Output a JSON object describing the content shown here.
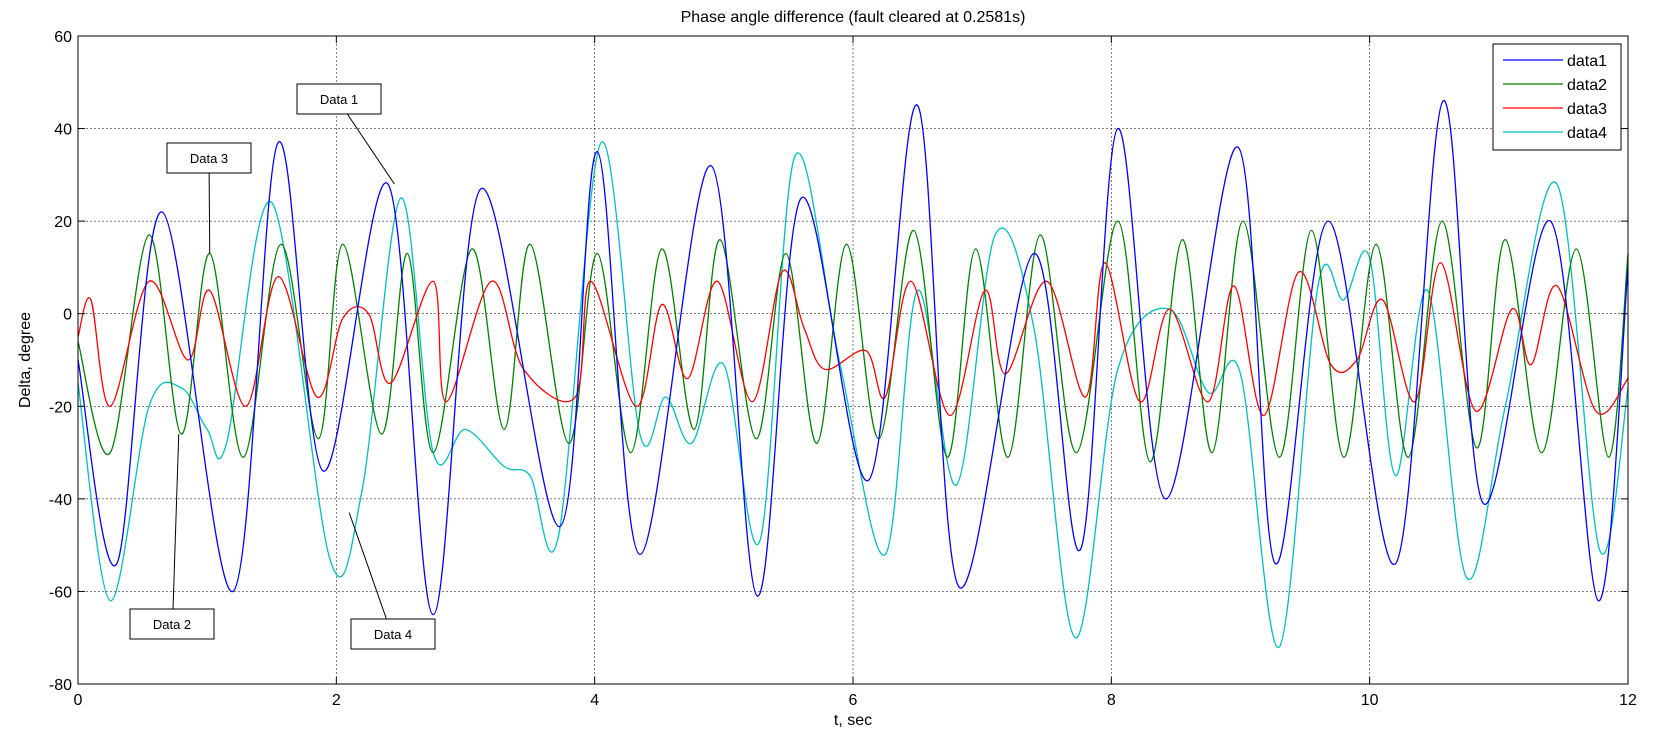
{
  "chart_data": {
    "type": "line",
    "title": "Phase angle difference (fault cleared at 0.2581s)",
    "xlabel": "t, sec",
    "ylabel": "Delta, degree",
    "xlim": [
      0,
      12
    ],
    "ylim": [
      -80,
      60
    ],
    "xticks": [
      0,
      2,
      4,
      6,
      8,
      10,
      12
    ],
    "yticks": [
      -80,
      -60,
      -40,
      -20,
      0,
      20,
      40,
      60
    ],
    "grid": true,
    "legend_position": "top-right",
    "series": [
      {
        "name": "data1",
        "color": "#0000ff",
        "points": [
          [
            0,
            -10
          ],
          [
            0.3,
            -54
          ],
          [
            0.65,
            22
          ],
          [
            1.2,
            -60
          ],
          [
            1.55,
            37
          ],
          [
            1.9,
            -34
          ],
          [
            2.4,
            28
          ],
          [
            2.75,
            -65
          ],
          [
            3.12,
            27
          ],
          [
            3.73,
            -46
          ],
          [
            4.02,
            35
          ],
          [
            4.35,
            -52
          ],
          [
            4.9,
            32
          ],
          [
            5.26,
            -61
          ],
          [
            5.6,
            25
          ],
          [
            6.12,
            -36
          ],
          [
            6.5,
            45
          ],
          [
            6.82,
            -59
          ],
          [
            7.4,
            13
          ],
          [
            7.76,
            -51
          ],
          [
            8.05,
            40
          ],
          [
            8.42,
            -40
          ],
          [
            8.98,
            36
          ],
          [
            9.27,
            -54
          ],
          [
            9.68,
            20
          ],
          [
            10.2,
            -54
          ],
          [
            10.57,
            46
          ],
          [
            10.88,
            -41
          ],
          [
            11.4,
            20
          ],
          [
            11.77,
            -62
          ],
          [
            12,
            10
          ]
        ]
      },
      {
        "name": "data2",
        "color": "#008000",
        "points": [
          [
            0,
            -6
          ],
          [
            0.25,
            -30
          ],
          [
            0.55,
            17
          ],
          [
            0.8,
            -26
          ],
          [
            1.02,
            13
          ],
          [
            1.28,
            -31
          ],
          [
            1.57,
            15
          ],
          [
            1.86,
            -27
          ],
          [
            2.05,
            15
          ],
          [
            2.35,
            -26
          ],
          [
            2.55,
            13
          ],
          [
            2.75,
            -30
          ],
          [
            3.05,
            14
          ],
          [
            3.3,
            -25
          ],
          [
            3.5,
            15
          ],
          [
            3.8,
            -28
          ],
          [
            4.02,
            13
          ],
          [
            4.28,
            -30
          ],
          [
            4.52,
            14
          ],
          [
            4.77,
            -25
          ],
          [
            4.97,
            16
          ],
          [
            5.25,
            -27
          ],
          [
            5.48,
            13
          ],
          [
            5.72,
            -28
          ],
          [
            5.95,
            15
          ],
          [
            6.2,
            -27
          ],
          [
            6.47,
            18
          ],
          [
            6.73,
            -31
          ],
          [
            6.95,
            14
          ],
          [
            7.2,
            -31
          ],
          [
            7.45,
            17
          ],
          [
            7.73,
            -30
          ],
          [
            8.05,
            20
          ],
          [
            8.3,
            -32
          ],
          [
            8.55,
            16
          ],
          [
            8.78,
            -30
          ],
          [
            9.02,
            20
          ],
          [
            9.3,
            -31
          ],
          [
            9.55,
            18
          ],
          [
            9.8,
            -31
          ],
          [
            10.05,
            15
          ],
          [
            10.3,
            -31
          ],
          [
            10.56,
            20
          ],
          [
            10.83,
            -29
          ],
          [
            11.05,
            16
          ],
          [
            11.33,
            -30
          ],
          [
            11.6,
            14
          ],
          [
            11.85,
            -31
          ],
          [
            12,
            13
          ]
        ]
      },
      {
        "name": "data3",
        "color": "#ff0000",
        "points": [
          [
            0,
            -5
          ],
          [
            0.1,
            3
          ],
          [
            0.25,
            -20
          ],
          [
            0.55,
            7
          ],
          [
            0.85,
            -10
          ],
          [
            1.02,
            5
          ],
          [
            1.3,
            -20
          ],
          [
            1.55,
            8
          ],
          [
            1.85,
            -18
          ],
          [
            2.05,
            -1
          ],
          [
            2.25,
            0
          ],
          [
            2.42,
            -15
          ],
          [
            2.75,
            7
          ],
          [
            2.85,
            -19
          ],
          [
            3.2,
            7
          ],
          [
            3.45,
            -12
          ],
          [
            3.85,
            -18
          ],
          [
            3.97,
            7
          ],
          [
            4.32,
            -20
          ],
          [
            4.52,
            2
          ],
          [
            4.72,
            -14
          ],
          [
            4.95,
            7
          ],
          [
            5.22,
            -19
          ],
          [
            5.45,
            9
          ],
          [
            5.62,
            -3
          ],
          [
            5.78,
            -12
          ],
          [
            6.1,
            -8
          ],
          [
            6.25,
            -18
          ],
          [
            6.45,
            7
          ],
          [
            6.75,
            -22
          ],
          [
            7.02,
            5
          ],
          [
            7.18,
            -13
          ],
          [
            7.5,
            7
          ],
          [
            7.8,
            -18
          ],
          [
            7.95,
            11
          ],
          [
            8.22,
            -19
          ],
          [
            8.45,
            1
          ],
          [
            8.75,
            -19
          ],
          [
            8.95,
            6
          ],
          [
            9.18,
            -22
          ],
          [
            9.45,
            9
          ],
          [
            9.7,
            -11
          ],
          [
            9.9,
            -10
          ],
          [
            10.1,
            3
          ],
          [
            10.35,
            -19
          ],
          [
            10.55,
            11
          ],
          [
            10.82,
            -21
          ],
          [
            11.1,
            1
          ],
          [
            11.25,
            -11
          ],
          [
            11.45,
            6
          ],
          [
            11.75,
            -21
          ],
          [
            12,
            -14
          ]
        ]
      },
      {
        "name": "data4",
        "color": "#00bfbf",
        "points": [
          [
            0,
            -15
          ],
          [
            0.25,
            -62
          ],
          [
            0.55,
            -20
          ],
          [
            0.8,
            -16
          ],
          [
            1.0,
            -25
          ],
          [
            1.15,
            -28
          ],
          [
            1.5,
            24
          ],
          [
            1.95,
            -53
          ],
          [
            2.2,
            -38
          ],
          [
            2.5,
            25
          ],
          [
            2.75,
            -30
          ],
          [
            3.0,
            -25
          ],
          [
            3.3,
            -33
          ],
          [
            3.5,
            -35
          ],
          [
            3.72,
            -48
          ],
          [
            4.05,
            37
          ],
          [
            4.35,
            -26
          ],
          [
            4.55,
            -18
          ],
          [
            4.75,
            -28
          ],
          [
            5.0,
            -11
          ],
          [
            5.28,
            -49
          ],
          [
            5.55,
            34
          ],
          [
            5.9,
            -11
          ],
          [
            6.25,
            -52
          ],
          [
            6.5,
            5
          ],
          [
            6.8,
            -37
          ],
          [
            7.1,
            17
          ],
          [
            7.4,
            -3
          ],
          [
            7.72,
            -70
          ],
          [
            8.05,
            -12
          ],
          [
            8.45,
            1
          ],
          [
            8.75,
            -17
          ],
          [
            9.0,
            -13
          ],
          [
            9.3,
            -72
          ],
          [
            9.6,
            6
          ],
          [
            9.8,
            3
          ],
          [
            10.0,
            12
          ],
          [
            10.2,
            -35
          ],
          [
            10.45,
            5
          ],
          [
            10.75,
            -57
          ],
          [
            11.05,
            -20
          ],
          [
            11.45,
            28
          ],
          [
            11.78,
            -51
          ],
          [
            12,
            -16
          ]
        ]
      }
    ],
    "annotations": [
      {
        "label": "Data 1",
        "target": [
          2.45,
          28
        ]
      },
      {
        "label": "Data 3",
        "target": [
          1.02,
          13
        ]
      },
      {
        "label": "Data 2",
        "target": [
          0.78,
          -26
        ]
      },
      {
        "label": "Data 4",
        "target": [
          2.1,
          -43
        ]
      }
    ]
  }
}
